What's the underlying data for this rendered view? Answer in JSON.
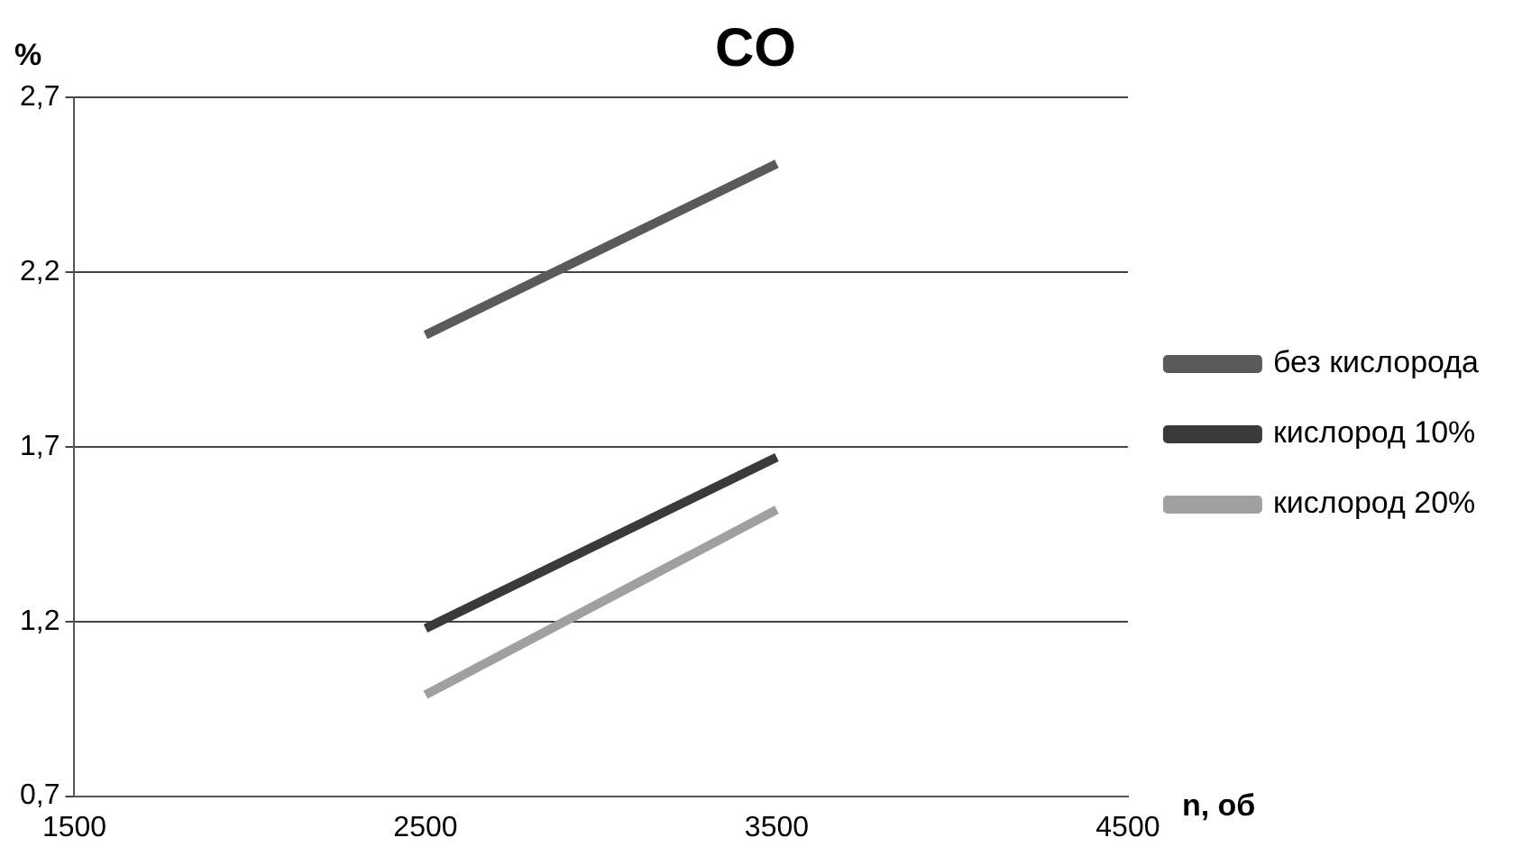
{
  "chart_data": {
    "type": "line",
    "title": "CO",
    "xlabel": "n, об",
    "ylabel": "%",
    "x": [
      2500,
      3500
    ],
    "xlim": [
      1500,
      4500
    ],
    "xticks": [
      1500,
      2500,
      3500,
      4500
    ],
    "ylim": [
      0.7,
      2.7
    ],
    "yticks": [
      {
        "value": 0.7,
        "label": "0,7"
      },
      {
        "value": 1.2,
        "label": "1,2"
      },
      {
        "value": 1.7,
        "label": "1,7"
      },
      {
        "value": 2.2,
        "label": "2,2"
      },
      {
        "value": 2.7,
        "label": "2,7"
      }
    ],
    "grid": "y",
    "legend": "right",
    "marker": "none",
    "series": [
      {
        "name": "без кислорода",
        "color": "#5a5a5a",
        "values": [
          2.02,
          2.51
        ]
      },
      {
        "name": "кислород 10%",
        "color": "#3a3a3a",
        "values": [
          1.18,
          1.67
        ]
      },
      {
        "name": "кислород 20%",
        "color": "#a0a0a0",
        "values": [
          0.99,
          1.52
        ]
      }
    ]
  }
}
